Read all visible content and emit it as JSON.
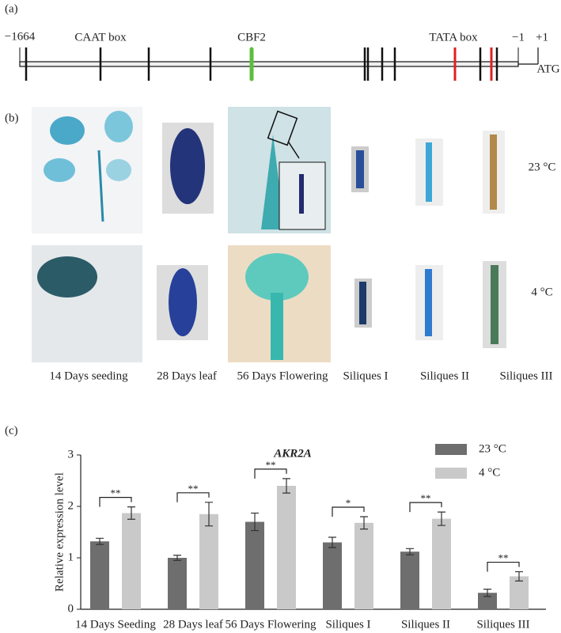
{
  "panel_a": {
    "label": "(a)",
    "start": "−1664",
    "end": "−1",
    "plus": "+1",
    "atg": "ATG",
    "caat": "CAAT box",
    "cbf2": "CBF2",
    "tata": "TATA box"
  },
  "panel_b": {
    "label": "(b)",
    "columns": [
      "14 Days seeding",
      "28 Days leaf",
      "56 Days Flowering",
      "Siliques I",
      "Siliques II",
      "Siliques III"
    ],
    "rows": [
      "23 °C",
      "4 °C"
    ]
  },
  "chart_data": {
    "type": "bar",
    "label": "(c)",
    "title": "AKR2A",
    "y_label": "Relative  expression level",
    "categories": [
      "14 Days Seeding",
      "28 Days leaf",
      "56 Days Flowering",
      "Siliques I",
      "Siliques II",
      "Siliques III"
    ],
    "series": [
      {
        "name": "23 °C",
        "color": "#6e6e6e",
        "values": [
          1.32,
          1.0,
          1.7,
          1.3,
          1.12,
          0.32
        ],
        "errors": [
          0.06,
          0.05,
          0.17,
          0.1,
          0.06,
          0.07
        ]
      },
      {
        "name": "4 °C",
        "color": "#c9c9c9",
        "values": [
          1.87,
          1.85,
          2.4,
          1.68,
          1.76,
          0.64
        ],
        "errors": [
          0.12,
          0.23,
          0.14,
          0.12,
          0.13,
          0.09
        ]
      }
    ],
    "significance": [
      "**",
      "**",
      "**",
      "*",
      "**",
      "**"
    ],
    "ylim": [
      0,
      3
    ],
    "yticks": [
      0,
      1,
      2,
      3
    ],
    "legend": "upper right"
  }
}
